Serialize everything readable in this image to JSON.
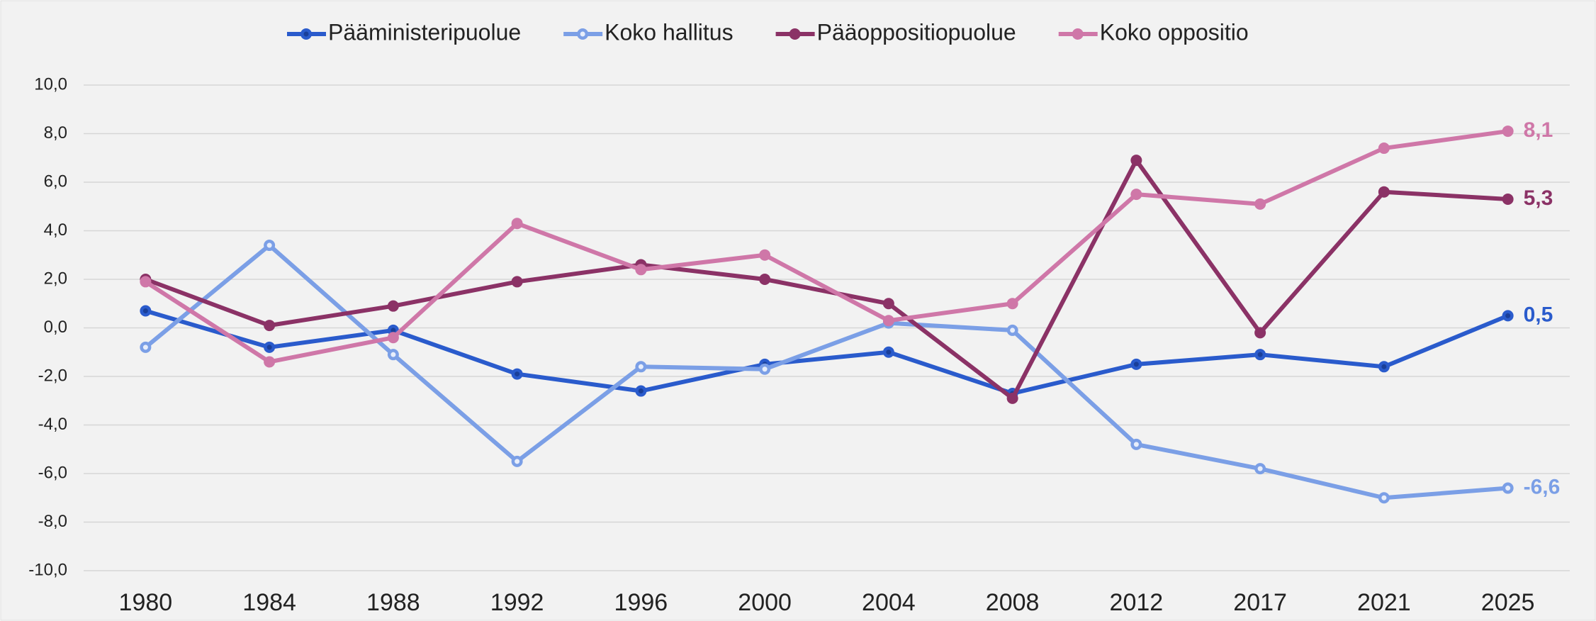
{
  "chart_data": {
    "type": "line",
    "categories": [
      "1980",
      "1984",
      "1988",
      "1992",
      "1996",
      "2000",
      "2004",
      "2008",
      "2012",
      "2017",
      "2021",
      "2025"
    ],
    "series": [
      {
        "name": "Pääministeripuolue",
        "color": "#2a5bcc",
        "marker_fill": "#1a3f99",
        "values": [
          0.7,
          -0.8,
          -0.1,
          -1.9,
          -2.6,
          -1.5,
          -1.0,
          -2.7,
          -1.5,
          -1.1,
          -1.6,
          0.5
        ],
        "value_labels": [
          null,
          null,
          null,
          null,
          null,
          null,
          null,
          null,
          null,
          null,
          null,
          "0,5"
        ]
      },
      {
        "name": "Koko hallitus",
        "color": "#7b9fe6",
        "marker_fill": "#e8eefb",
        "values": [
          -0.8,
          3.4,
          -1.1,
          -5.5,
          -1.6,
          -1.7,
          0.2,
          -0.1,
          -4.8,
          -5.8,
          -7.0,
          -6.6
        ],
        "value_labels": [
          null,
          null,
          null,
          null,
          null,
          null,
          null,
          null,
          null,
          null,
          null,
          "-6,6"
        ]
      },
      {
        "name": "Pääoppositiopuolue",
        "color": "#8b3266",
        "marker_fill": "#8b3266",
        "values": [
          2.0,
          0.1,
          0.9,
          1.9,
          2.6,
          2.0,
          1.0,
          -2.9,
          6.9,
          -0.2,
          5.6,
          5.3
        ],
        "value_labels": [
          null,
          null,
          null,
          null,
          null,
          null,
          null,
          null,
          null,
          null,
          null,
          "5,3"
        ]
      },
      {
        "name": "Koko oppositio",
        "color": "#cf77a8",
        "marker_fill": "#cf77a8",
        "values": [
          1.9,
          -1.4,
          -0.4,
          4.3,
          2.4,
          3.0,
          0.3,
          1.0,
          5.5,
          5.1,
          7.4,
          8.1
        ],
        "value_labels": [
          null,
          null,
          null,
          null,
          null,
          null,
          null,
          null,
          null,
          null,
          null,
          "8,1"
        ]
      }
    ],
    "ylim": [
      -10,
      10
    ],
    "yticks": [
      {
        "value": -10,
        "label": "-10,0"
      },
      {
        "value": -8,
        "label": "-8,0"
      },
      {
        "value": -6,
        "label": "-6,0"
      },
      {
        "value": -4,
        "label": "-4,0"
      },
      {
        "value": -2,
        "label": "-2,0"
      },
      {
        "value": 0,
        "label": "0,0"
      },
      {
        "value": 2,
        "label": "2,0"
      },
      {
        "value": 4,
        "label": "4,0"
      },
      {
        "value": 6,
        "label": "6,0"
      },
      {
        "value": 8,
        "label": "8,0"
      },
      {
        "value": 10,
        "label": "10,0"
      }
    ],
    "grid": true,
    "legend": "top"
  }
}
